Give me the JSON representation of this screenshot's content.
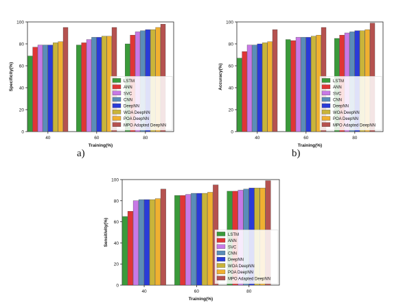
{
  "colors": {
    "series": [
      "#3a9a3a",
      "#e03535",
      "#c879e6",
      "#5b8db8",
      "#2a3bd8",
      "#c9b43a",
      "#f0b030",
      "#b5524f"
    ]
  },
  "chart_data": [
    {
      "type": "bar",
      "panel_label": "a)",
      "title": "",
      "xlabel": "Training(%)",
      "ylabel": "Specificity(%)",
      "ylim": [
        0,
        100
      ],
      "yticks": [
        0,
        20,
        40,
        60,
        80,
        100
      ],
      "categories": [
        "40",
        "60",
        "80"
      ],
      "legend_position": "lower-right",
      "grid": false,
      "series": [
        {
          "name": "LSTM",
          "values": [
            69,
            79,
            80
          ]
        },
        {
          "name": "ANN",
          "values": [
            77,
            81,
            88
          ]
        },
        {
          "name": "SVC",
          "values": [
            79,
            84,
            91
          ]
        },
        {
          "name": "CNN",
          "values": [
            79,
            86,
            92
          ]
        },
        {
          "name": "DeepNN",
          "values": [
            79,
            86,
            93
          ]
        },
        {
          "name": "WOA DeepNN",
          "values": [
            81,
            87,
            93
          ]
        },
        {
          "name": "POA DeepNN",
          "values": [
            82,
            87,
            95
          ]
        },
        {
          "name": "MPO Adapted DeepNN",
          "values": [
            95,
            95,
            98
          ]
        }
      ]
    },
    {
      "type": "bar",
      "panel_label": "b)",
      "title": "",
      "xlabel": "Training(%)",
      "ylabel": "Accuracy(%)",
      "ylim": [
        0,
        100
      ],
      "yticks": [
        0,
        20,
        40,
        60,
        80,
        100
      ],
      "categories": [
        "40",
        "60",
        "80"
      ],
      "legend_position": "lower-right",
      "grid": false,
      "series": [
        {
          "name": "LSTM",
          "values": [
            67,
            84,
            85
          ]
        },
        {
          "name": "ANN",
          "values": [
            73,
            83,
            88
          ]
        },
        {
          "name": "SVC",
          "values": [
            79,
            86,
            90
          ]
        },
        {
          "name": "CNN",
          "values": [
            79,
            86,
            91
          ]
        },
        {
          "name": "DeepNN",
          "values": [
            80,
            86,
            92
          ]
        },
        {
          "name": "WOA DeepNN",
          "values": [
            81,
            87,
            92
          ]
        },
        {
          "name": "POA DeepNN",
          "values": [
            82,
            88,
            93
          ]
        },
        {
          "name": "MPO Adapted DeepNN",
          "values": [
            93,
            95,
            99
          ]
        }
      ]
    },
    {
      "type": "bar",
      "panel_label": "",
      "title": "",
      "xlabel": "Training(%)",
      "ylabel": "Sensitivity(%)",
      "ylim": [
        0,
        100
      ],
      "yticks": [
        0,
        20,
        40,
        60,
        80,
        100
      ],
      "categories": [
        "40",
        "60",
        "80"
      ],
      "legend_position": "lower-right",
      "grid": false,
      "series": [
        {
          "name": "LSTM",
          "values": [
            65,
            85,
            89
          ]
        },
        {
          "name": "ANN",
          "values": [
            70,
            85,
            89
          ]
        },
        {
          "name": "SVC",
          "values": [
            80,
            86,
            90
          ]
        },
        {
          "name": "CNN",
          "values": [
            81,
            87,
            91
          ]
        },
        {
          "name": "DeepNN",
          "values": [
            81,
            87,
            92
          ]
        },
        {
          "name": "WOA DeepNN",
          "values": [
            81,
            87,
            92
          ]
        },
        {
          "name": "POA DeepNN",
          "values": [
            82,
            88,
            92
          ]
        },
        {
          "name": "MPO Adapted DeepNN",
          "values": [
            91,
            95,
            99
          ]
        }
      ]
    }
  ]
}
